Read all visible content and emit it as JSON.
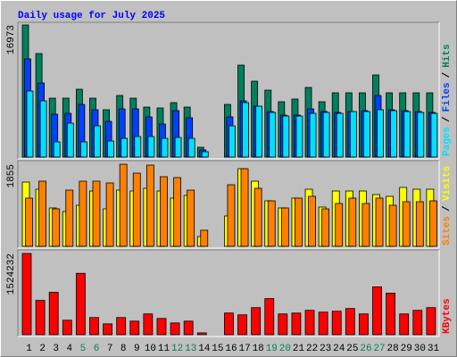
{
  "chart_data": {
    "type": "bar",
    "title": "Daily usage for July 2025",
    "title_color": "#0000ff",
    "categories": [
      "1",
      "2",
      "3",
      "4",
      "5",
      "6",
      "7",
      "8",
      "9",
      "10",
      "11",
      "12",
      "13",
      "14",
      "15",
      "16",
      "17",
      "18",
      "19",
      "20",
      "21",
      "22",
      "23",
      "24",
      "25",
      "26",
      "27",
      "28",
      "29",
      "30",
      "31"
    ],
    "category_colors": [
      "#000000",
      "#000000",
      "#000000",
      "#000000",
      "#00805c",
      "#00805c",
      "#000000",
      "#000000",
      "#000000",
      "#000000",
      "#000000",
      "#00805c",
      "#00805c",
      "#000000",
      "#000000",
      "#000000",
      "#000000",
      "#000000",
      "#00805c",
      "#00805c",
      "#000000",
      "#000000",
      "#000000",
      "#000000",
      "#000000",
      "#00805c",
      "#00805c",
      "#000000",
      "#000000",
      "#000000",
      "#000000"
    ],
    "legend_separator": "/",
    "panels": [
      {
        "ylim": [
          0,
          16973
        ],
        "yticks": [
          16973
        ],
        "series": [
          {
            "name": "Hits",
            "color": "#00805c",
            "values": [
              16973,
              13303,
              7569,
              7569,
              8716,
              7569,
              6078,
              7913,
              7569,
              6422,
              6308,
              6996,
              6422,
              1261,
              0,
              6766,
              11812,
              9748,
              8601,
              7110,
              7454,
              8945,
              7110,
              8257,
              8257,
              8257,
              10551,
              8257,
              8257,
              8257,
              8257
            ]
          },
          {
            "name": "Files",
            "color": "#0040ff",
            "values": [
              12615,
              9519,
              5505,
              5620,
              6766,
              6078,
              4587,
              6193,
              6193,
              5161,
              4243,
              5964,
              5046,
              917,
              0,
              5161,
              7225,
              6537,
              5849,
              5390,
              5390,
              6193,
              5849,
              5734,
              5849,
              5964,
              7913,
              6078,
              5964,
              5849,
              5734
            ]
          },
          {
            "name": "Pages",
            "color": "#00e0ff",
            "values": [
              8487,
              7225,
              1950,
              4358,
              1950,
              4014,
              2064,
              2408,
              2637,
              2637,
              2408,
              2523,
              2408,
              688,
              0,
              4014,
              6996,
              6537,
              5734,
              5275,
              5275,
              5620,
              5734,
              5620,
              5849,
              5849,
              6078,
              5964,
              5849,
              5734,
              5620
            ]
          }
        ]
      },
      {
        "ylim": [
          0,
          1855
        ],
        "yticks": [
          1855
        ],
        "series": [
          {
            "name": "Visits",
            "color": "#ffff00",
            "values": [
              1452,
              1290,
              867,
              786,
              928,
              1250,
              847,
              1270,
              1250,
              1311,
              1250,
              1089,
              1149,
              222,
              0,
              686,
              1754,
              1472,
              1028,
              867,
              1089,
              1290,
              887,
              1250,
              1250,
              1250,
              1169,
              1129,
              1331,
              1290,
              1290
            ]
          },
          {
            "name": "Sites",
            "color": "#ff8000",
            "values": [
              1089,
              1472,
              847,
              1270,
              1472,
              1472,
              1432,
              1855,
              1653,
              1835,
              1573,
              1553,
              1270,
              363,
              0,
              1391,
              1754,
              1311,
              1028,
              867,
              1089,
              1129,
              847,
              968,
              1089,
              968,
              1089,
              928,
              1008,
              1008,
              1028
            ]
          }
        ]
      },
      {
        "ylim": [
          0,
          1524232
        ],
        "yticks": [
          1524232
        ],
        "series": [
          {
            "name": "KBytes",
            "color": "#ff0000",
            "values": [
              1524232,
              643565,
              796000,
              270975,
              1151642,
              321782,
              203231,
              321782,
              254039,
              389526,
              304846,
              220167,
              254039,
              33872,
              0,
              406462,
              372590,
              508077,
              677436,
              389526,
              406462,
              457270,
              423398,
              440334,
              491141,
              389526,
              897604,
              779052,
              389526,
              457270,
              508077
            ]
          }
        ]
      }
    ]
  }
}
